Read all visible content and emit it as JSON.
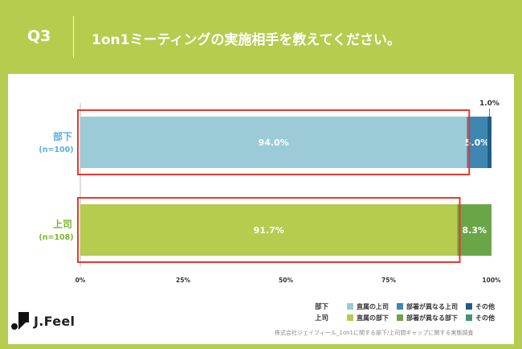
{
  "header": {
    "question": "Q3",
    "title": "1on1ミーティングの実施相手を教えてください。"
  },
  "chart_data": {
    "type": "bar",
    "orientation": "horizontal",
    "stacked": true,
    "xlim": [
      0,
      100
    ],
    "x_ticks": [
      "0%",
      "25%",
      "50%",
      "75%",
      "100%"
    ],
    "categories": [
      {
        "label": "部下",
        "sample": "(n=100)",
        "label_color": "#5aaee0"
      },
      {
        "label": "上司",
        "sample": "(n=108)",
        "label_color": "#7ab62d"
      }
    ],
    "rows": [
      {
        "segments": [
          {
            "name": "直属の上司",
            "value": 94.0,
            "label": "94.0%",
            "color": "#9ccbd8"
          },
          {
            "name": "部署が異なる上司",
            "value": 5.0,
            "label": "5.0%",
            "color": "#3d87b0"
          },
          {
            "name": "その他",
            "value": 1.0,
            "label": "1.0%",
            "color": "#1f5d86"
          }
        ]
      },
      {
        "segments": [
          {
            "name": "直属の部下",
            "value": 91.7,
            "label": "91.7%",
            "color": "#b5cc4e"
          },
          {
            "name": "部署が異なる部下",
            "value": 8.3,
            "label": "8.3%",
            "color": "#6aa548"
          }
        ]
      }
    ],
    "highlight_color": "#e5392f",
    "grid": false,
    "legend": {
      "placement": "bottom-right",
      "groups": [
        {
          "name": "部下",
          "items": [
            {
              "label": "直属の上司",
              "color": "#9ccbd8"
            },
            {
              "label": "部署が異なる上司",
              "color": "#3d87b0"
            },
            {
              "label": "その他",
              "color": "#1f5d86"
            }
          ]
        },
        {
          "name": "上司",
          "items": [
            {
              "label": "直属の部下",
              "color": "#b5cc4e"
            },
            {
              "label": "部署が異なる部下",
              "color": "#6aa548"
            },
            {
              "label": "その他",
              "color": "#3f9473"
            }
          ]
        }
      ]
    }
  },
  "footer": {
    "logo_text": "J.Feel",
    "note": "株式会社ジェイフィール_1on1に関する部下/上司間ギャップに関する実態調査"
  }
}
